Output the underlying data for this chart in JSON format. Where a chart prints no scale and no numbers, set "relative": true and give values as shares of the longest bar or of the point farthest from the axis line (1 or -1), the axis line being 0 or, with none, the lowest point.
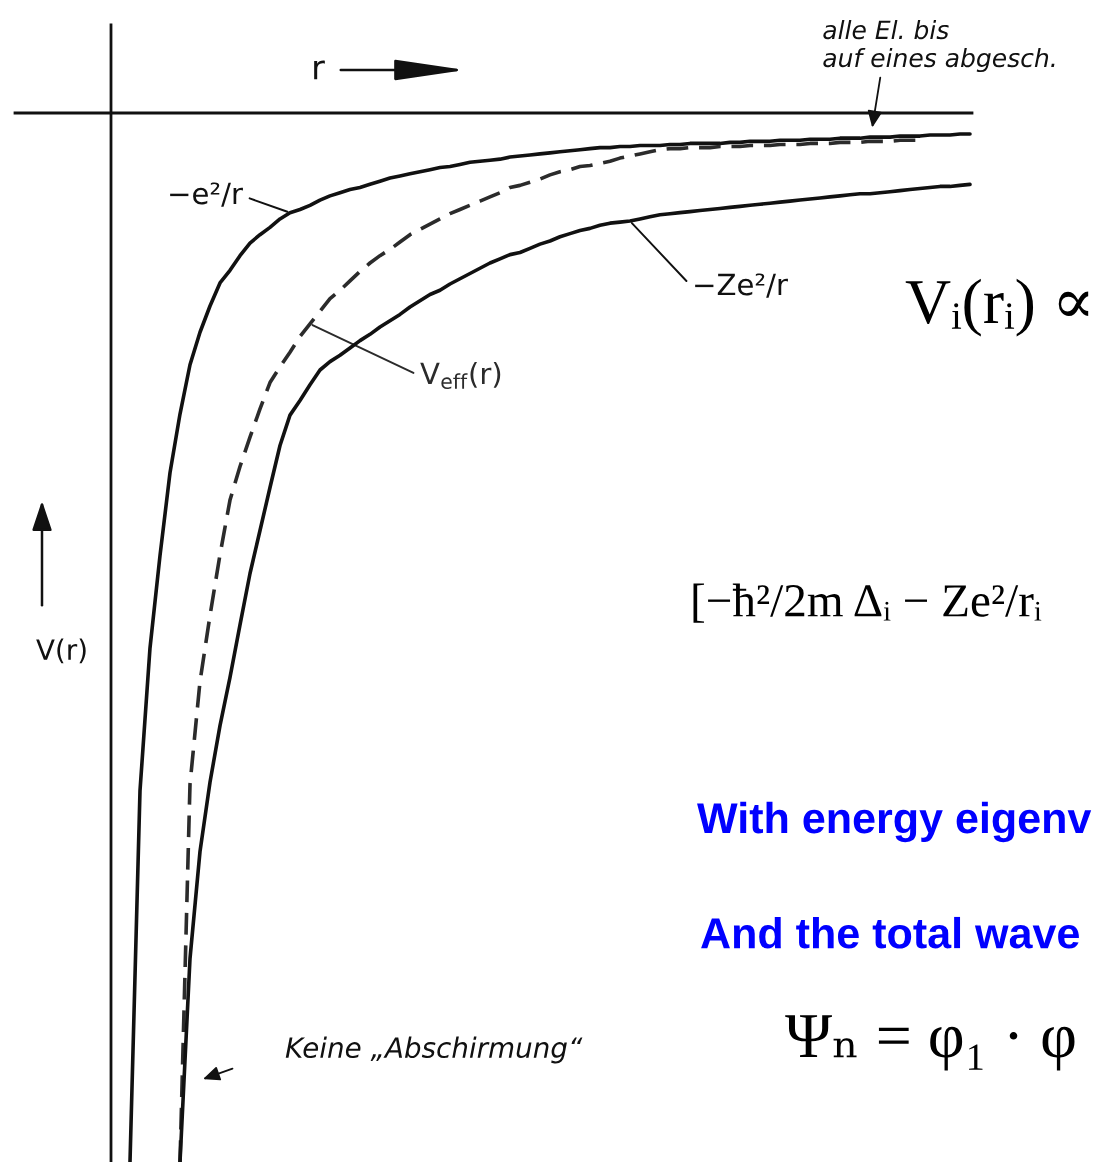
{
  "chart_data": {
    "type": "line",
    "relative": true,
    "tick_labels": false,
    "xlabel": "r",
    "ylabel": "V(r)",
    "categories": [
      null,
      null,
      null,
      null,
      null,
      null,
      null,
      null,
      null,
      null,
      null,
      null,
      null,
      null,
      null,
      null,
      null,
      null,
      null,
      null,
      null,
      null,
      null,
      null,
      null,
      null,
      null,
      null,
      null,
      null,
      null,
      null,
      null,
      null,
      null,
      null,
      null,
      null,
      null,
      null,
      null,
      null,
      null,
      null,
      null,
      null,
      null,
      null,
      null,
      null,
      null,
      null,
      null,
      null,
      null,
      null,
      null,
      null,
      null,
      null,
      null,
      null,
      null,
      null,
      null,
      null,
      null,
      null,
      null,
      null,
      null,
      null,
      null,
      null,
      null,
      null,
      null,
      null,
      null,
      null,
      null,
      null,
      null,
      null,
      null
    ],
    "series": [
      {
        "name": "−e²/r",
        "color": "#111111",
        "line_style": "solid",
        "values": [
          -1,
          -0.646,
          -0.51,
          -0.422,
          -0.343,
          -0.287,
          -0.24,
          -0.209,
          -0.184,
          -0.162,
          -0.15,
          -0.136,
          -0.124,
          -0.116,
          -0.109,
          -0.101,
          -0.095,
          -0.092,
          -0.088,
          -0.083,
          -0.079,
          -0.076,
          -0.073,
          -0.071,
          -0.068,
          -0.065,
          -0.062,
          -0.06,
          -0.058,
          -0.056,
          -0.054,
          -0.052,
          -0.051,
          -0.049,
          -0.047,
          -0.046,
          -0.045,
          -0.044,
          -0.042,
          -0.041,
          -0.04,
          -0.039,
          -0.038,
          -0.037,
          -0.036,
          -0.035,
          -0.034,
          -0.033,
          -0.033,
          -0.032,
          -0.032,
          -0.031,
          -0.031,
          -0.031,
          -0.03,
          -0.03,
          -0.029,
          -0.029,
          -0.029,
          -0.029,
          -0.028,
          -0.028,
          -0.027,
          -0.027,
          -0.027,
          -0.026,
          -0.026,
          -0.026,
          -0.025,
          -0.025,
          -0.025,
          -0.024,
          -0.024,
          -0.024,
          -0.023,
          -0.023,
          -0.023,
          -0.022,
          -0.022,
          -0.022,
          -0.021,
          -0.021,
          -0.021,
          -0.02,
          -0.02
        ]
      },
      {
        "name": "V$_{eff}$(r)",
        "color": "#2b2b2b",
        "line_style": "dashed",
        "values": [
          null,
          null,
          null,
          null,
          null,
          -1,
          -0.64,
          -0.542,
          -0.479,
          -0.421,
          -0.369,
          -0.337,
          -0.309,
          -0.282,
          -0.257,
          -0.242,
          -0.228,
          -0.213,
          -0.201,
          -0.189,
          -0.177,
          -0.169,
          -0.16,
          -0.151,
          -0.143,
          -0.136,
          -0.13,
          -0.123,
          -0.116,
          -0.111,
          -0.106,
          -0.101,
          -0.096,
          -0.092,
          -0.088,
          -0.084,
          -0.08,
          -0.076,
          -0.071,
          -0.069,
          -0.066,
          -0.063,
          -0.059,
          -0.056,
          -0.054,
          -0.051,
          -0.05,
          -0.048,
          -0.046,
          -0.043,
          -0.041,
          -0.039,
          -0.037,
          -0.035,
          -0.034,
          -0.034,
          -0.033,
          -0.033,
          -0.033,
          -0.032,
          -0.032,
          -0.032,
          -0.031,
          -0.031,
          -0.031,
          -0.03,
          -0.03,
          -0.03,
          -0.029,
          -0.029,
          -0.029,
          -0.028,
          -0.028,
          -0.028,
          -0.027,
          -0.027,
          -0.027,
          -0.026,
          -0.026,
          -0.026,
          null,
          null,
          null,
          null,
          null
        ]
      },
      {
        "name": "−Ze²/r",
        "color": "#111111",
        "line_style": "solid",
        "values": [
          null,
          null,
          null,
          null,
          null,
          -1,
          -0.806,
          -0.704,
          -0.638,
          -0.584,
          -0.538,
          -0.488,
          -0.439,
          -0.398,
          -0.357,
          -0.317,
          -0.288,
          -0.274,
          -0.259,
          -0.245,
          -0.237,
          -0.231,
          -0.224,
          -0.217,
          -0.211,
          -0.204,
          -0.198,
          -0.192,
          -0.185,
          -0.179,
          -0.173,
          -0.169,
          -0.163,
          -0.158,
          -0.153,
          -0.148,
          -0.143,
          -0.139,
          -0.135,
          -0.133,
          -0.129,
          -0.125,
          -0.122,
          -0.118,
          -0.115,
          -0.112,
          -0.11,
          -0.107,
          -0.105,
          -0.104,
          -0.103,
          -0.101,
          -0.099,
          -0.097,
          -0.096,
          -0.095,
          -0.094,
          -0.093,
          -0.092,
          -0.091,
          -0.09,
          -0.089,
          -0.088,
          -0.087,
          -0.086,
          -0.085,
          -0.084,
          -0.083,
          -0.082,
          -0.081,
          -0.08,
          -0.079,
          -0.078,
          -0.077,
          -0.077,
          -0.076,
          -0.075,
          -0.074,
          -0.073,
          -0.072,
          -0.071,
          -0.07,
          -0.07,
          -0.069,
          -0.068
        ]
      }
    ],
    "annotations": [
      "alle El. bis\nauf eines abgesch.",
      "Keine „Abschirmung“",
      "Vᵢ(rᵢ) ∝",
      "[−ħ²/2m Δᵢ − Ze²/rᵢ",
      "With energy eigenv",
      "And the total wave",
      "Ψₙ = φ₁ · φ"
    ]
  }
}
